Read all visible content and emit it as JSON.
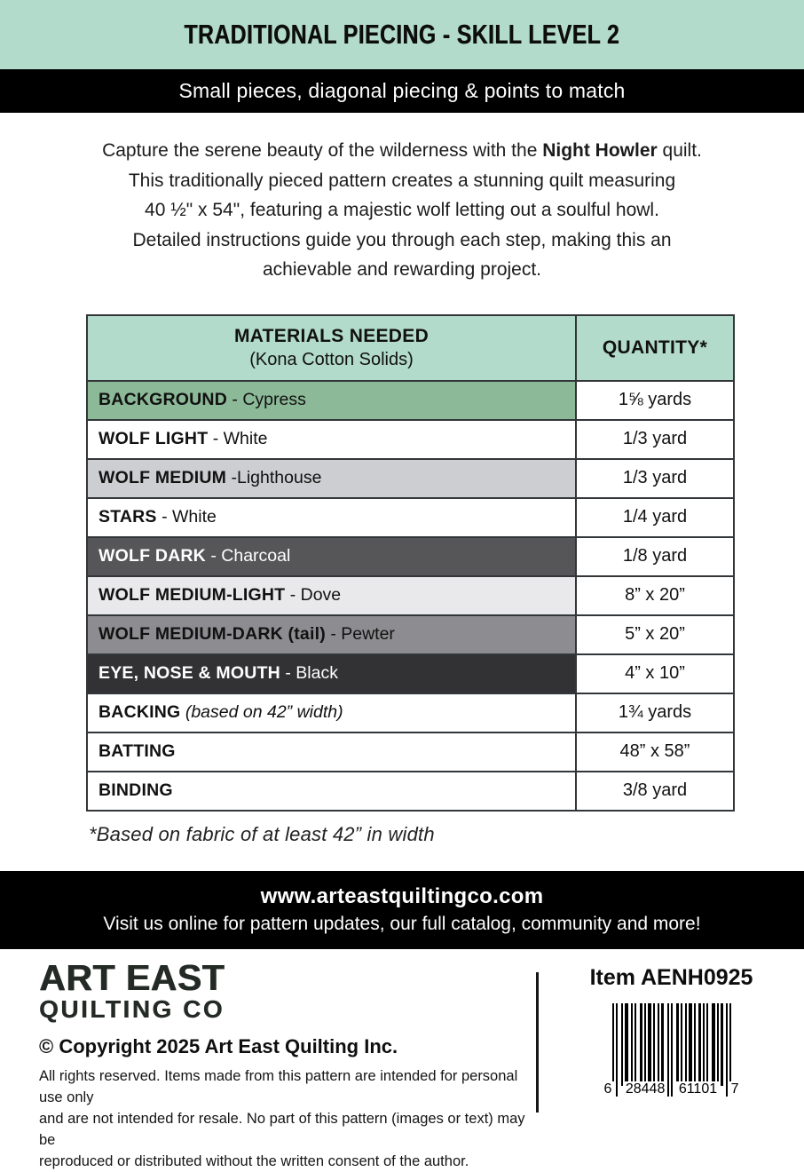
{
  "colors": {
    "mint": "#b2dbcb",
    "band_black": "#000000",
    "table_border": "#333639",
    "row_cypress_green": "#8cba98",
    "row_lighthouse_gray": "#cdced2",
    "row_dove_gray": "#e9e9eb",
    "row_charcoal": "#565659",
    "row_pewter": "#8d8d91",
    "row_black": "#323235",
    "logo_dark": "#242b26"
  },
  "banner": {
    "title": "TRADITIONAL PIECING - SKILL LEVEL 2"
  },
  "subtitle_band": {
    "text": "Small pieces, diagonal piecing & points to match"
  },
  "description": {
    "line1_pre": "Capture the serene beauty of the wilderness with the ",
    "line1_bold": "Night Howler",
    "line1_post": " quilt.",
    "line2": "This traditionally pieced pattern creates a stunning quilt measuring",
    "line3": "40 ½\" x 54\", featuring a majestic wolf letting out a soulful howl.",
    "line4": "Detailed instructions guide you through each step, making this an",
    "line5": "achievable and rewarding project."
  },
  "table": {
    "header": {
      "col1_title": "MATERIALS NEEDED",
      "col1_subtitle": "(Kona Cotton Solids)",
      "col2_title": "QUANTITY*"
    },
    "rows": [
      {
        "bold": "BACKGROUND",
        "rest": " - Cypress",
        "qty": "1⅝ yards",
        "bg": "#8cba98",
        "fg": "#111111"
      },
      {
        "bold": "WOLF LIGHT",
        "rest": " - White",
        "qty": "1/3 yard",
        "bg": "#ffffff",
        "fg": "#111111"
      },
      {
        "bold": "WOLF MEDIUM",
        "rest": " -Lighthouse",
        "qty": "1/3 yard",
        "bg": "#cdced2",
        "fg": "#111111"
      },
      {
        "bold": "STARS",
        "rest": " - White",
        "qty": "1/4 yard",
        "bg": "#ffffff",
        "fg": "#111111"
      },
      {
        "bold": "WOLF DARK",
        "rest": " - Charcoal",
        "qty": "1/8 yard",
        "bg": "#565659",
        "fg": "#ffffff"
      },
      {
        "bold": "WOLF MEDIUM-LIGHT",
        "rest": " - Dove",
        "qty": "8” x 20”",
        "bg": "#e9e9eb",
        "fg": "#111111"
      },
      {
        "bold": "WOLF MEDIUM-DARK (tail)",
        "rest": " - Pewter",
        "qty": "5” x 20”",
        "bg": "#8d8d91",
        "fg": "#111111"
      },
      {
        "bold": "EYE, NOSE & MOUTH",
        "rest": " - Black",
        "qty": "4” x 10”",
        "bg": "#323235",
        "fg": "#ffffff"
      },
      {
        "bold": "BACKING",
        "rest": " (based on 42” width)",
        "qty": "1¾ yards",
        "bg": "#ffffff",
        "fg": "#111111"
      },
      {
        "bold": "BATTING",
        "rest": "",
        "qty": "48” x 58”",
        "bg": "#ffffff",
        "fg": "#111111"
      },
      {
        "bold": "BINDING",
        "rest": "",
        "qty": "3/8 yard",
        "bg": "#ffffff",
        "fg": "#111111"
      }
    ]
  },
  "footnote": {
    "text": "*Based on fabric of at least 42” in width"
  },
  "footer_band": {
    "url": "www.arteastquiltingco.com",
    "tagline": "Visit us online for pattern updates, our full catalog, community and more!"
  },
  "bottom": {
    "logo_line1": "ART EAST",
    "logo_line2": "QUILTING CO",
    "copyright": "© Copyright 2025 Art East Quilting Inc.",
    "legal_line1": "All rights reserved. Items made from this pattern are intended for personal use only",
    "legal_line2": "and are not intended for resale. No part of this pattern (images or text) may be",
    "legal_line3": "reproduced or distributed without the written consent of the author.",
    "item_label": "Item AENH0925",
    "barcode_digits": [
      "6",
      "28448",
      "61101",
      "7"
    ]
  }
}
